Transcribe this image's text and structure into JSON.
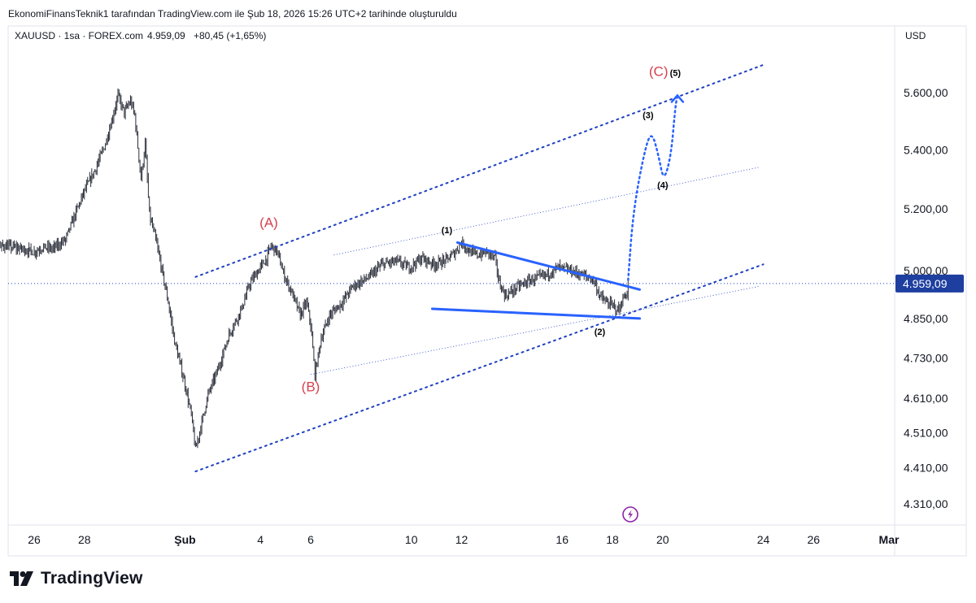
{
  "header": {
    "attribution": "EkonomiFinansTeknik1 tarafından TradingView.com ile Şub 18, 2026 15:26 UTC+2 tarihinde oluşturuldu"
  },
  "legend": {
    "symbol_line": "XAUUSD · 1sa · FOREX.com",
    "price": "4.959,09",
    "change": "+80,45 (+1,65%)"
  },
  "price_scale": {
    "currency": "USD",
    "current_price_label": "4.959,09",
    "current_price_bg": "#1e3fa0"
  },
  "footer": {
    "brand": "TradingView",
    "logo_icon": "tradingview-logo-icon"
  },
  "colors": {
    "wave_label_red": "#d6404c",
    "channel_blue": "#1e40c0",
    "triangle_blue": "#2962ff",
    "candle": "#2a2e39",
    "grid": "#e0e3eb"
  },
  "chart_data": {
    "type": "candlestick",
    "symbol": "XAUUSD",
    "interval": "1sa",
    "currency": "USD",
    "last_price": 4959.09,
    "change": 80.45,
    "change_pct": 1.65,
    "y_scale": "log",
    "y_ticks": [
      {
        "value": 5600,
        "label": "5.600,00"
      },
      {
        "value": 5400,
        "label": "5.400,00"
      },
      {
        "value": 5200,
        "label": "5.200,00"
      },
      {
        "value": 5000,
        "label": "5.000,00"
      },
      {
        "value": 4850,
        "label": "4.850,00"
      },
      {
        "value": 4730,
        "label": "4.730,00"
      },
      {
        "value": 4610,
        "label": "4.610,00"
      },
      {
        "value": 4510,
        "label": "4.510,00"
      },
      {
        "value": 4410,
        "label": "4.410,00"
      },
      {
        "value": 4310,
        "label": "4.310,00"
      }
    ],
    "x_ticks": [
      {
        "date": "2026-01-26",
        "label": "26",
        "bold": false
      },
      {
        "date": "2026-01-28",
        "label": "28",
        "bold": false
      },
      {
        "date": "2026-02-01",
        "label": "Şub",
        "bold": true
      },
      {
        "date": "2026-02-04",
        "label": "4",
        "bold": false
      },
      {
        "date": "2026-02-06",
        "label": "6",
        "bold": false
      },
      {
        "date": "2026-02-10",
        "label": "10",
        "bold": false
      },
      {
        "date": "2026-02-12",
        "label": "12",
        "bold": false
      },
      {
        "date": "2026-02-16",
        "label": "16",
        "bold": false
      },
      {
        "date": "2026-02-18",
        "label": "18",
        "bold": false
      },
      {
        "date": "2026-02-20",
        "label": "20",
        "bold": false
      },
      {
        "date": "2026-02-24",
        "label": "24",
        "bold": false
      },
      {
        "date": "2026-02-26",
        "label": "26",
        "bold": false
      },
      {
        "date": "2026-03-01",
        "label": "Mar",
        "bold": true
      }
    ],
    "price_path": [
      [
        "2026-01-23 00:00",
        4960
      ],
      [
        "2026-01-23 08:00",
        4920
      ],
      [
        "2026-01-23 16:00",
        4975
      ],
      [
        "2026-01-24 06:00",
        5050
      ],
      [
        "2026-01-24 18:00",
        5080
      ],
      [
        "2026-01-25 12:00",
        5070
      ],
      [
        "2026-01-26 00:00",
        5060
      ],
      [
        "2026-01-26 08:00",
        5075
      ],
      [
        "2026-01-26 18:00",
        5070
      ],
      [
        "2026-01-27 06:00",
        5100
      ],
      [
        "2026-01-27 16:00",
        5190
      ],
      [
        "2026-01-28 00:00",
        5260
      ],
      [
        "2026-01-28 10:00",
        5330
      ],
      [
        "2026-01-28 20:00",
        5420
      ],
      [
        "2026-01-29 02:00",
        5500
      ],
      [
        "2026-01-29 08:00",
        5590
      ],
      [
        "2026-01-29 14:00",
        5530
      ],
      [
        "2026-01-29 20:00",
        5570
      ],
      [
        "2026-01-30 00:00",
        5520
      ],
      [
        "2026-01-30 06:00",
        5300
      ],
      [
        "2026-01-30 10:00",
        5420
      ],
      [
        "2026-01-30 14:00",
        5180
      ],
      [
        "2026-01-30 20:00",
        5100
      ],
      [
        "2026-01-31 02:00",
        5000
      ],
      [
        "2026-01-31 08:00",
        4900
      ],
      [
        "2026-01-31 14:00",
        4780
      ],
      [
        "2026-02-01 00:00",
        4650
      ],
      [
        "2026-02-01 06:00",
        4560
      ],
      [
        "2026-02-01 10:00",
        4460
      ],
      [
        "2026-02-01 16:00",
        4540
      ],
      [
        "2026-02-01 22:00",
        4620
      ],
      [
        "2026-02-02 08:00",
        4700
      ],
      [
        "2026-02-02 18:00",
        4800
      ],
      [
        "2026-02-03 06:00",
        4880
      ],
      [
        "2026-02-03 14:00",
        4960
      ],
      [
        "2026-02-03 22:00",
        5000
      ],
      [
        "2026-02-04 06:00",
        5040
      ],
      [
        "2026-02-04 10:00",
        5080
      ],
      [
        "2026-02-04 16:00",
        5060
      ],
      [
        "2026-02-04 22:00",
        4990
      ],
      [
        "2026-02-05 06:00",
        4930
      ],
      [
        "2026-02-05 14:00",
        4860
      ],
      [
        "2026-02-05 20:00",
        4900
      ],
      [
        "2026-02-06 00:00",
        4830
      ],
      [
        "2026-02-06 04:00",
        4680
      ],
      [
        "2026-02-06 10:00",
        4790
      ],
      [
        "2026-02-06 18:00",
        4860
      ],
      [
        "2026-02-07 06:00",
        4900
      ],
      [
        "2026-02-07 16:00",
        4950
      ],
      [
        "2026-02-08 08:00",
        4980
      ],
      [
        "2026-02-08 20:00",
        5020
      ],
      [
        "2026-02-09 10:00",
        5030
      ],
      [
        "2026-02-09 22:00",
        5010
      ],
      [
        "2026-02-10 10:00",
        5040
      ],
      [
        "2026-02-10 22:00",
        5020
      ],
      [
        "2026-02-11 10:00",
        5035
      ],
      [
        "2026-02-11 18:00",
        5060
      ],
      [
        "2026-02-12 00:00",
        5090
      ],
      [
        "2026-02-12 08:00",
        5060
      ],
      [
        "2026-02-12 16:00",
        5050
      ],
      [
        "2026-02-13 00:00",
        5060
      ],
      [
        "2026-02-13 08:00",
        5040
      ],
      [
        "2026-02-13 12:00",
        4960
      ],
      [
        "2026-02-13 18:00",
        4920
      ],
      [
        "2026-02-14 06:00",
        4950
      ],
      [
        "2026-02-14 18:00",
        4970
      ],
      [
        "2026-02-15 08:00",
        4985
      ],
      [
        "2026-02-15 20:00",
        5010
      ],
      [
        "2026-02-16 08:00",
        5000
      ],
      [
        "2026-02-16 20:00",
        4985
      ],
      [
        "2026-02-17 06:00",
        4970
      ],
      [
        "2026-02-17 12:00",
        4920
      ],
      [
        "2026-02-17 18:00",
        4900
      ],
      [
        "2026-02-18 00:00",
        4890
      ],
      [
        "2026-02-18 06:00",
        4875
      ],
      [
        "2026-02-18 10:00",
        4910
      ],
      [
        "2026-02-18 14:00",
        4930
      ],
      [
        "2026-02-18 15:00",
        4959.09
      ]
    ],
    "price_line": {
      "value": 4959.09
    },
    "lines": [
      {
        "name": "channel-upper",
        "style": "dotted-bold",
        "from": [
          "2026-02-01 10:00",
          4980
        ],
        "to": [
          "2026-02-24 00:00",
          5700
        ]
      },
      {
        "name": "channel-lower",
        "style": "dotted-bold",
        "from": [
          "2026-02-01 10:00",
          4400
        ],
        "to": [
          "2026-02-24 00:00",
          5020
        ]
      },
      {
        "name": "inner-upper",
        "style": "dotted-thin",
        "from": [
          "2026-02-06 22:00",
          5050
        ],
        "to": [
          "2026-02-23 20:00",
          5340
        ]
      },
      {
        "name": "inner-lower",
        "style": "dotted-thin",
        "from": [
          "2026-02-06 00:00",
          4680
        ],
        "to": [
          "2026-02-23 20:00",
          4950
        ]
      },
      {
        "name": "triangle-upper",
        "style": "solid",
        "from": [
          "2026-02-11 20:00",
          5090
        ],
        "to": [
          "2026-02-19 02:00",
          4940
        ]
      },
      {
        "name": "triangle-lower",
        "style": "solid",
        "from": [
          "2026-02-10 20:00",
          4880
        ],
        "to": [
          "2026-02-19 02:00",
          4850
        ]
      }
    ],
    "projection": [
      [
        "2026-02-18 15:00",
        4970
      ],
      [
        "2026-02-18 20:00",
        5200
      ],
      [
        "2026-02-19 08:00",
        5420
      ],
      [
        "2026-02-19 14:00",
        5460
      ],
      [
        "2026-02-19 20:00",
        5380
      ],
      [
        "2026-02-20 01:00",
        5290
      ],
      [
        "2026-02-20 08:00",
        5380
      ],
      [
        "2026-02-20 12:00",
        5550
      ],
      [
        "2026-02-20 14:00",
        5590
      ]
    ],
    "wave_labels": [
      {
        "text": "(A)",
        "color": "red",
        "at": [
          "2026-02-04 08:00",
          5140
        ]
      },
      {
        "text": "(B)",
        "color": "red",
        "at": [
          "2026-02-06 00:00",
          4630
        ]
      },
      {
        "text": "(C)",
        "color": "red",
        "at": [
          "2026-02-19 20:00",
          5660
        ]
      },
      {
        "text": "(1)",
        "color": "black",
        "at": [
          "2026-02-11 10:00",
          5120
        ]
      },
      {
        "text": "(2)",
        "color": "black",
        "at": [
          "2026-02-17 12:00",
          4800
        ]
      },
      {
        "text": "(3)",
        "color": "black",
        "at": [
          "2026-02-19 10:00",
          5510
        ]
      },
      {
        "text": "(4)",
        "color": "black",
        "at": [
          "2026-02-20 00:00",
          5270
        ]
      },
      {
        "text": "(5)",
        "color": "black",
        "at": [
          "2026-02-20 12:00",
          5660
        ]
      }
    ]
  }
}
